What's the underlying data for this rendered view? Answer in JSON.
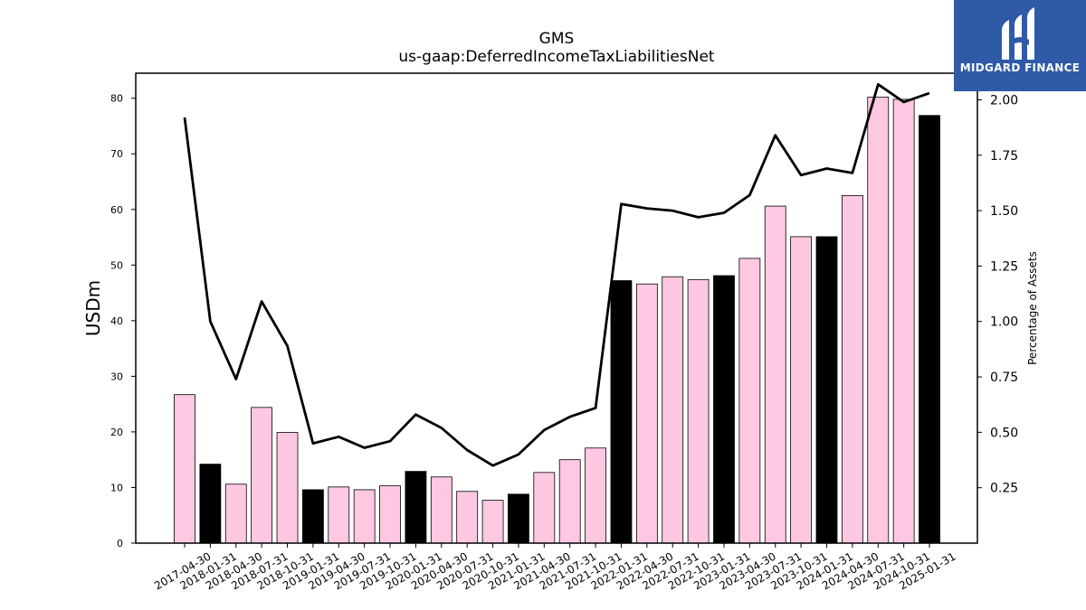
{
  "chart_data": {
    "type": "bar",
    "title": "GMS",
    "subtitle": "us-gaap:DeferredIncomeTaxLiabilitiesNet",
    "ylabel": "USDm",
    "y2label": "Percentage of Assets",
    "ylim": [
      0,
      84.5
    ],
    "y2lim": [
      0.0,
      2.12
    ],
    "yticks": [
      0,
      10,
      20,
      30,
      40,
      50,
      60,
      70,
      80
    ],
    "y2ticks": [
      "0.25",
      "0.50",
      "0.75",
      "1.00",
      "1.25",
      "1.50",
      "1.75",
      "2.00"
    ],
    "grid": false,
    "categories": [
      "2017-04-30",
      "2018-01-31",
      "2018-04-30",
      "2018-07-31",
      "2018-10-31",
      "2019-01-31",
      "2019-04-30",
      "2019-07-31",
      "2019-10-31",
      "2020-01-31",
      "2020-04-30",
      "2020-07-31",
      "2020-10-31",
      "2021-01-31",
      "2021-04-30",
      "2021-07-31",
      "2021-10-31",
      "2022-01-31",
      "2022-04-30",
      "2022-07-31",
      "2022-10-31",
      "2023-01-31",
      "2023-04-30",
      "2023-07-31",
      "2023-10-31",
      "2024-01-31",
      "2024-04-30",
      "2024-07-31",
      "2024-10-31",
      "2025-01-31"
    ],
    "series": [
      {
        "kind": "bar",
        "values": [
          26.7,
          14.2,
          10.6,
          24.4,
          19.9,
          9.6,
          10.1,
          9.6,
          10.3,
          12.9,
          11.9,
          9.3,
          7.7,
          8.8,
          12.7,
          15.0,
          17.1,
          47.2,
          46.6,
          47.9,
          47.4,
          48.1,
          51.2,
          60.6,
          55.1,
          55.1,
          62.5,
          80.2,
          79.8,
          76.9
        ],
        "colors": [
          "#ffc8e2",
          "#000000",
          "#ffc8e2",
          "#ffc8e2",
          "#ffc8e2",
          "#000000",
          "#ffc8e2",
          "#ffc8e2",
          "#ffc8e2",
          "#000000",
          "#ffc8e2",
          "#ffc8e2",
          "#ffc8e2",
          "#000000",
          "#ffc8e2",
          "#ffc8e2",
          "#ffc8e2",
          "#000000",
          "#ffc8e2",
          "#ffc8e2",
          "#ffc8e2",
          "#000000",
          "#ffc8e2",
          "#ffc8e2",
          "#ffc8e2",
          "#000000",
          "#ffc8e2",
          "#ffc8e2",
          "#ffc8e2",
          "#000000"
        ]
      },
      {
        "kind": "line",
        "axis": "right",
        "color": "#000000",
        "values": [
          1.92,
          1.0,
          0.74,
          1.09,
          0.89,
          0.45,
          0.48,
          0.43,
          0.46,
          0.58,
          0.52,
          0.42,
          0.35,
          0.4,
          0.51,
          0.57,
          0.61,
          1.53,
          1.51,
          1.5,
          1.47,
          1.49,
          1.57,
          1.84,
          1.66,
          1.69,
          1.67,
          2.07,
          1.99,
          2.03
        ]
      }
    ]
  },
  "logo": {
    "text": "MIDGARD FINANCE",
    "bg": "#2f5aa8"
  }
}
